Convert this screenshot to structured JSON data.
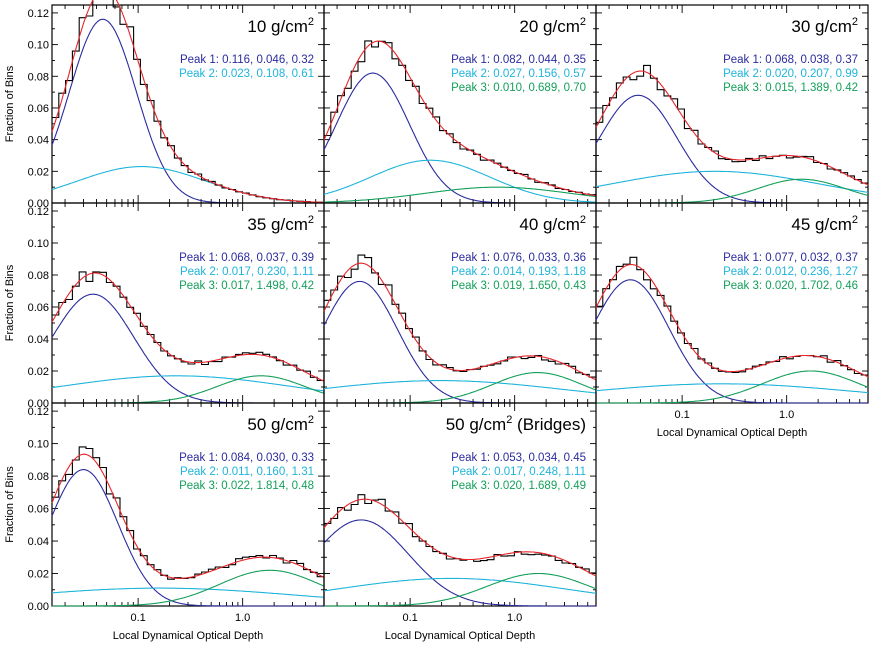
{
  "colors": {
    "peak1": "#2b2b9e",
    "peak2": "#1fb4dc",
    "peak3": "#139f5a",
    "total": "#e8252b",
    "hist": "#000000"
  },
  "axis_labels": {
    "ylabel": "Fraction of Bins",
    "xlabel": "Local Dynamical Optical Depth"
  },
  "x_tick_labels": [
    "0.1",
    "1.0"
  ],
  "y_tick_labels": [
    "0.00",
    "0.02",
    "0.04",
    "0.06",
    "0.08",
    "0.10",
    "0.12"
  ],
  "chart_data": [
    {
      "type": "histogram-with-gaussian-fits",
      "title": "10 g/cm",
      "title_sup": "2",
      "xscale": "log",
      "xlim": [
        0.015,
        6
      ],
      "ylim": [
        0,
        0.125
      ],
      "peaks": [
        {
          "label": "Peak 1: 0.116, 0.046, 0.32",
          "amp": 0.116,
          "mu": 0.046,
          "sigma": 0.32
        },
        {
          "label": "Peak 2: 0.023, 0.108, 0.61",
          "amp": 0.023,
          "mu": 0.108,
          "sigma": 0.61
        }
      ]
    },
    {
      "type": "histogram-with-gaussian-fits",
      "title": "20 g/cm",
      "title_sup": "2",
      "xscale": "log",
      "xlim": [
        0.015,
        6
      ],
      "ylim": [
        0,
        0.125
      ],
      "peaks": [
        {
          "label": "Peak 1: 0.082, 0.044, 0.35",
          "amp": 0.082,
          "mu": 0.044,
          "sigma": 0.35
        },
        {
          "label": "Peak 2: 0.027, 0.156, 0.57",
          "amp": 0.027,
          "mu": 0.156,
          "sigma": 0.57
        },
        {
          "label": "Peak 3: 0.010, 0.689, 0.70",
          "amp": 0.01,
          "mu": 0.689,
          "sigma": 0.7
        }
      ]
    },
    {
      "type": "histogram-with-gaussian-fits",
      "title": "30 g/cm",
      "title_sup": "2",
      "xscale": "log",
      "xlim": [
        0.015,
        6
      ],
      "ylim": [
        0,
        0.125
      ],
      "peaks": [
        {
          "label": "Peak 1: 0.068, 0.038, 0.37",
          "amp": 0.068,
          "mu": 0.038,
          "sigma": 0.37
        },
        {
          "label": "Peak 2: 0.020, 0.207, 0.99",
          "amp": 0.02,
          "mu": 0.207,
          "sigma": 0.99
        },
        {
          "label": "Peak 3: 0.015, 1.389, 0.42",
          "amp": 0.015,
          "mu": 1.389,
          "sigma": 0.42
        }
      ]
    },
    {
      "type": "histogram-with-gaussian-fits",
      "title": "35 g/cm",
      "title_sup": "2",
      "xscale": "log",
      "xlim": [
        0.015,
        6
      ],
      "ylim": [
        0,
        0.125
      ],
      "peaks": [
        {
          "label": "Peak 1: 0.068, 0.037, 0.39",
          "amp": 0.068,
          "mu": 0.037,
          "sigma": 0.39
        },
        {
          "label": "Peak 2: 0.017, 0.230, 1.11",
          "amp": 0.017,
          "mu": 0.23,
          "sigma": 1.11
        },
        {
          "label": "Peak 3: 0.017, 1.498, 0.42",
          "amp": 0.017,
          "mu": 1.498,
          "sigma": 0.42
        }
      ]
    },
    {
      "type": "histogram-with-gaussian-fits",
      "title": "40 g/cm",
      "title_sup": "2",
      "xscale": "log",
      "xlim": [
        0.015,
        6
      ],
      "ylim": [
        0,
        0.125
      ],
      "peaks": [
        {
          "label": "Peak 1: 0.076, 0.033, 0.36",
          "amp": 0.076,
          "mu": 0.033,
          "sigma": 0.36
        },
        {
          "label": "Peak 2: 0.014, 0.193, 1.18",
          "amp": 0.014,
          "mu": 0.193,
          "sigma": 1.18
        },
        {
          "label": "Peak 3: 0.019, 1.650, 0.43",
          "amp": 0.019,
          "mu": 1.65,
          "sigma": 0.43
        }
      ]
    },
    {
      "type": "histogram-with-gaussian-fits",
      "title": "45 g/cm",
      "title_sup": "2",
      "xscale": "log",
      "xlim": [
        0.015,
        6
      ],
      "ylim": [
        0,
        0.125
      ],
      "peaks": [
        {
          "label": "Peak 1: 0.077, 0.032, 0.37",
          "amp": 0.077,
          "mu": 0.032,
          "sigma": 0.37
        },
        {
          "label": "Peak 2: 0.012, 0.236, 1.27",
          "amp": 0.012,
          "mu": 0.236,
          "sigma": 1.27
        },
        {
          "label": "Peak 3: 0.020, 1.702, 0.46",
          "amp": 0.02,
          "mu": 1.702,
          "sigma": 0.46
        }
      ]
    },
    {
      "type": "histogram-with-gaussian-fits",
      "title": "50 g/cm",
      "title_sup": "2",
      "xscale": "log",
      "xlim": [
        0.015,
        6
      ],
      "ylim": [
        0,
        0.125
      ],
      "peaks": [
        {
          "label": "Peak 1: 0.084, 0.030, 0.33",
          "amp": 0.084,
          "mu": 0.03,
          "sigma": 0.33
        },
        {
          "label": "Peak 2: 0.011, 0.160, 1.31",
          "amp": 0.011,
          "mu": 0.16,
          "sigma": 1.31
        },
        {
          "label": "Peak 3: 0.022, 1.814, 0.48",
          "amp": 0.022,
          "mu": 1.814,
          "sigma": 0.48
        }
      ]
    },
    {
      "type": "histogram-with-gaussian-fits",
      "title": "50 g/cm",
      "title_sup": "2",
      "title_suffix": " (Bridges)",
      "xscale": "log",
      "xlim": [
        0.015,
        6
      ],
      "ylim": [
        0,
        0.125
      ],
      "peaks": [
        {
          "label": "Peak 1: 0.053, 0.034, 0.45",
          "amp": 0.053,
          "mu": 0.034,
          "sigma": 0.45
        },
        {
          "label": "Peak 2: 0.017, 0.248, 1.11",
          "amp": 0.017,
          "mu": 0.248,
          "sigma": 1.11
        },
        {
          "label": "Peak 3: 0.020, 1.689, 0.49",
          "amp": 0.02,
          "mu": 1.689,
          "sigma": 0.49
        }
      ]
    }
  ]
}
